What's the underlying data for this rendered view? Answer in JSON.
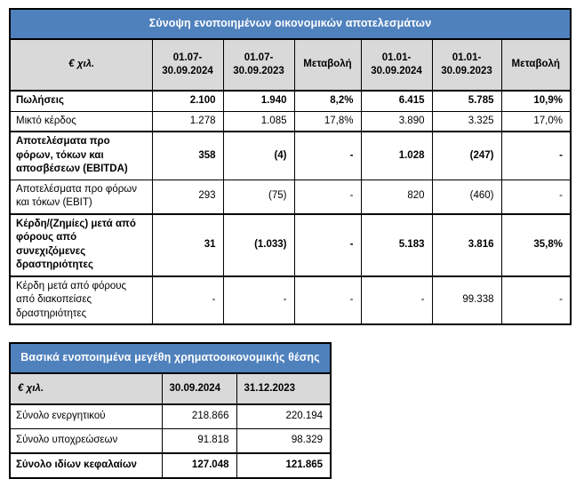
{
  "colors": {
    "header_blue": "#4f81bd",
    "header_gray": "#d9d9d9",
    "border_black": "#000000",
    "title_text": "#ffffff"
  },
  "table1": {
    "title": "Σύνοψη ενοποιημένων οικονομικών αποτελεσμάτων",
    "unit_label": "€ χιλ.",
    "columns": [
      "01.07-\n30.09.2024",
      "01.07-\n30.09.2023",
      "Μεταβολή",
      "01.01-\n30.09.2024",
      "01.01-\n30.09.2023",
      "Μεταβολή"
    ],
    "rows": [
      {
        "label": "Πωλήσεις",
        "bold": true,
        "thick_top": false,
        "values": [
          "2.100",
          "1.940",
          "8,2%",
          "6.415",
          "5.785",
          "10,9%"
        ]
      },
      {
        "label": "Μικτό κέρδος",
        "bold": false,
        "thick_top": false,
        "values": [
          "1.278",
          "1.085",
          "17,8%",
          "3.890",
          "3.325",
          "17,0%"
        ]
      },
      {
        "label": "Αποτελέσματα προ φόρων, τόκων και αποσβέσεων (EBITDA)",
        "bold": true,
        "thick_top": true,
        "values": [
          "358",
          "(4)",
          "-",
          "1.028",
          "(247)",
          "-"
        ]
      },
      {
        "label": "Αποτελέσματα προ φόρων και τόκων (EBIT)",
        "bold": false,
        "thick_top": false,
        "values": [
          "293",
          "(75)",
          "-",
          "820",
          "(460)",
          "-"
        ]
      },
      {
        "label": "Κέρδη/(Ζημίες) μετά από φόρους από συνεχιζόμενες δραστηριότητες",
        "bold": true,
        "thick_top": true,
        "values": [
          "31",
          "(1.033)",
          "-",
          "5.183",
          "3.816",
          "35,8%"
        ]
      },
      {
        "label": "Κέρδη μετά από φόρους από διακοπείσες δραστηριότητες",
        "bold": false,
        "thick_top": true,
        "values": [
          "-",
          "-",
          "-",
          "-",
          "99.338",
          "-"
        ]
      }
    ]
  },
  "table2": {
    "title": "Βασικά ενοποιημένα μεγέθη χρηματοοικονομικής θέσης",
    "unit_label": "€ χιλ.",
    "columns": [
      "30.09.2024",
      "31.12.2023"
    ],
    "rows": [
      {
        "label": "Σύνολο ενεργητικού",
        "bold": false,
        "thick_top": false,
        "values": [
          "218.866",
          "220.194"
        ]
      },
      {
        "label": "Σύνολο υποχρεώσεων",
        "bold": false,
        "thick_top": false,
        "values": [
          "91.818",
          "98.329"
        ]
      },
      {
        "label": "Σύνολο ιδίων κεφαλαίων",
        "bold": true,
        "thick_top": true,
        "values": [
          "127.048",
          "121.865"
        ]
      }
    ]
  }
}
